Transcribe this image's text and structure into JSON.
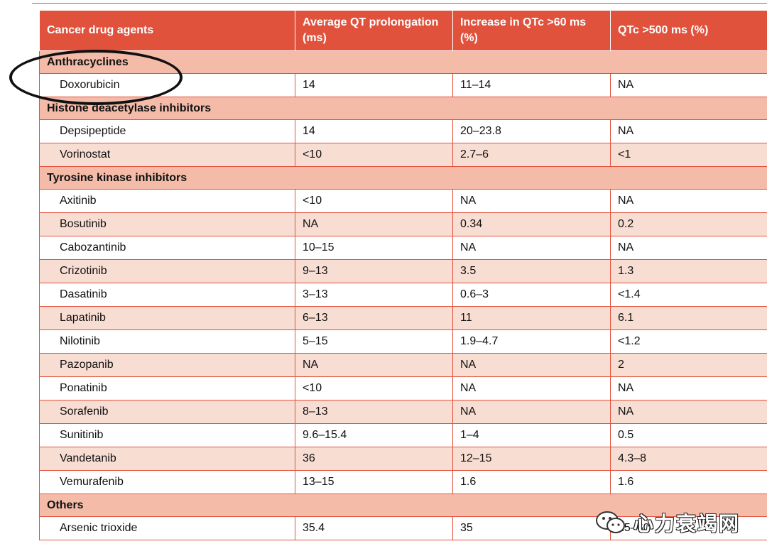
{
  "table": {
    "headers": [
      "Cancer drug agents",
      "Average QT prolongation (ms)",
      "Increase in QTc >60 ms (%)",
      "QTc >500 ms (%)"
    ],
    "groups": [
      {
        "name": "Anthracyclines",
        "rows": [
          [
            "Doxorubicin",
            "14",
            "11–14",
            "NA"
          ]
        ]
      },
      {
        "name": "Histone deacetylase inhibitors",
        "rows": [
          [
            "Depsipeptide",
            "14",
            "20–23.8",
            "NA"
          ],
          [
            "Vorinostat",
            "<10",
            "2.7–6",
            "<1"
          ]
        ]
      },
      {
        "name": "Tyrosine kinase inhibitors",
        "rows": [
          [
            "Axitinib",
            "<10",
            "NA",
            "NA"
          ],
          [
            "Bosutinib",
            "NA",
            "0.34",
            "0.2"
          ],
          [
            "Cabozantinib",
            "10–15",
            "NA",
            "NA"
          ],
          [
            "Crizotinib",
            "9–13",
            "3.5",
            "1.3"
          ],
          [
            "Dasatinib",
            "3–13",
            "0.6–3",
            "<1.4"
          ],
          [
            "Lapatinib",
            "6–13",
            "11",
            "6.1"
          ],
          [
            "Nilotinib",
            "5–15",
            "1.9–4.7",
            "<1.2"
          ],
          [
            "Pazopanib",
            "NA",
            "NA",
            "2"
          ],
          [
            "Ponatinib",
            "<10",
            "NA",
            "NA"
          ],
          [
            "Sorafenib",
            "8–13",
            "NA",
            "NA"
          ],
          [
            "Sunitinib",
            "9.6–15.4",
            "1–4",
            "0.5"
          ],
          [
            "Vandetanib",
            "36",
            "12–15",
            "4.3–8"
          ],
          [
            "Vemurafenib",
            "13–15",
            "1.6",
            "1.6"
          ]
        ]
      },
      {
        "name": "Others",
        "rows": [
          [
            "Arsenic trioxide",
            "35.4",
            "35",
            "25–60"
          ]
        ]
      }
    ]
  },
  "watermark": {
    "icon": "wechat-icon",
    "text": "心力衰竭网"
  }
}
